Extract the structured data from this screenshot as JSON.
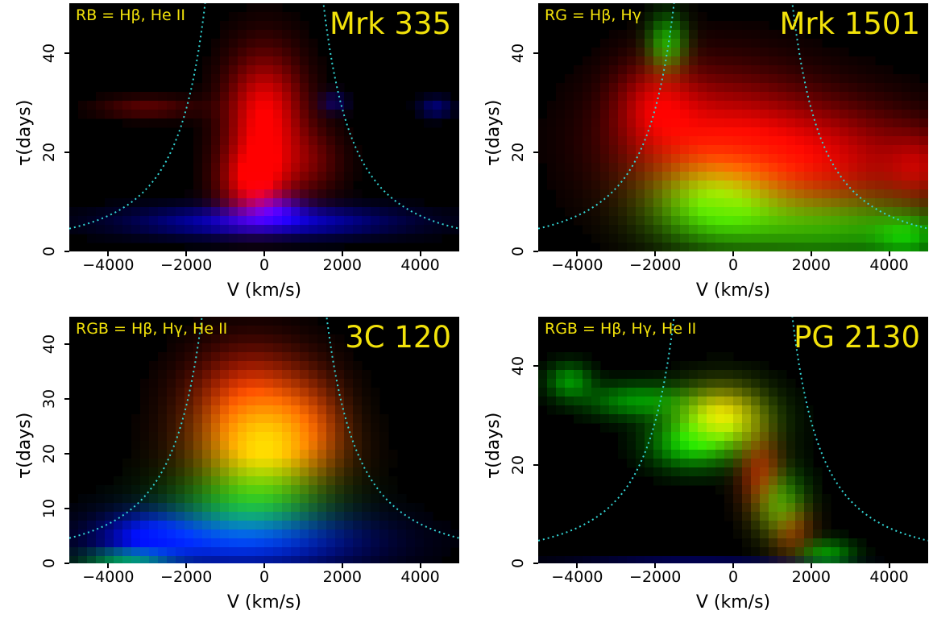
{
  "chart_data": [
    {
      "type": "heatmap",
      "title": "Mrk 335",
      "label": "RB = Hβ, He II",
      "xlabel": "V (km/s)",
      "ylabel": "τ(days)",
      "xlim": [
        -5000,
        5000
      ],
      "ylim": [
        0,
        50
      ],
      "xticks": [
        "−4000",
        "−2000",
        "0",
        "2000",
        "4000"
      ],
      "xtick_values": [
        -4000,
        -2000,
        0,
        2000,
        4000
      ],
      "yticks": [
        "0",
        "20",
        "40"
      ],
      "ytick_values": [
        0,
        20,
        40
      ],
      "channels": {
        "red": "Hβ",
        "blue": "He II"
      },
      "colors": {
        "red": "#ff1010",
        "green": "#20d020",
        "blue": "#1a30ff",
        "envelope": "#33d6d6"
      },
      "envelope": "virial curves, dotted cyan",
      "blobs": [
        {
          "channel": "red",
          "v": 0,
          "tau": 27,
          "sv": 700,
          "st": 9,
          "amp": 1.0
        },
        {
          "channel": "red",
          "v": -300,
          "tau": 14,
          "sv": 600,
          "st": 5,
          "amp": 0.8
        },
        {
          "channel": "red",
          "v": -3000,
          "tau": 29,
          "sv": 900,
          "st": 1.6,
          "amp": 0.35
        },
        {
          "channel": "red",
          "v": 1200,
          "tau": 18,
          "sv": 600,
          "st": 5,
          "amp": 0.35
        },
        {
          "channel": "blue",
          "v": 0,
          "tau": 6,
          "sv": 2300,
          "st": 2.2,
          "amp": 0.85
        },
        {
          "channel": "blue",
          "v": 300,
          "tau": 9,
          "sv": 500,
          "st": 2,
          "amp": 0.5
        },
        {
          "channel": "blue",
          "v": 4400,
          "tau": 29,
          "sv": 300,
          "st": 1.5,
          "amp": 0.45
        },
        {
          "channel": "blue",
          "v": 1800,
          "tau": 30,
          "sv": 250,
          "st": 1.5,
          "amp": 0.35
        }
      ]
    },
    {
      "type": "heatmap",
      "title": "Mrk 1501",
      "label": "RG = Hβ, Hγ",
      "xlabel": "V (km/s)",
      "ylabel": "τ(days)",
      "xlim": [
        -5000,
        5000
      ],
      "ylim": [
        0,
        50
      ],
      "xticks": [
        "−4000",
        "−2000",
        "0",
        "2000",
        "4000"
      ],
      "xtick_values": [
        -4000,
        -2000,
        0,
        2000,
        4000
      ],
      "yticks": [
        "0",
        "20",
        "40"
      ],
      "ytick_values": [
        0,
        20,
        40
      ],
      "channels": {
        "red": "Hβ",
        "green": "Hγ"
      },
      "colors": {
        "red": "#ff1010",
        "green": "#20d020",
        "blue": "#1a30ff",
        "envelope": "#33d6d6"
      },
      "envelope": "virial curves, dotted cyan",
      "blobs": [
        {
          "channel": "red",
          "v": -500,
          "tau": 22,
          "sv": 1800,
          "st": 10,
          "amp": 0.85
        },
        {
          "channel": "red",
          "v": 2500,
          "tau": 18,
          "sv": 1800,
          "st": 8,
          "amp": 0.7
        },
        {
          "channel": "red",
          "v": -2000,
          "tau": 30,
          "sv": 700,
          "st": 6,
          "amp": 0.5
        },
        {
          "channel": "red",
          "v": 4800,
          "tau": 17,
          "sv": 600,
          "st": 5,
          "amp": 0.45
        },
        {
          "channel": "green",
          "v": -500,
          "tau": 10,
          "sv": 1200,
          "st": 6,
          "amp": 0.95
        },
        {
          "channel": "green",
          "v": 2500,
          "tau": 5,
          "sv": 1800,
          "st": 5,
          "amp": 0.7
        },
        {
          "channel": "green",
          "v": -1700,
          "tau": 42,
          "sv": 350,
          "st": 4,
          "amp": 0.7
        },
        {
          "channel": "green",
          "v": 4500,
          "tau": 3,
          "sv": 600,
          "st": 3,
          "amp": 0.5
        }
      ]
    },
    {
      "type": "heatmap",
      "title": "3C 120",
      "label": "RGB = Hβ, Hγ, He II",
      "xlabel": "V (km/s)",
      "ylabel": "τ(days)",
      "xlim": [
        -5000,
        5000
      ],
      "ylim": [
        0,
        45
      ],
      "xticks": [
        "−4000",
        "−2000",
        "0",
        "2000",
        "4000"
      ],
      "xtick_values": [
        -4000,
        -2000,
        0,
        2000,
        4000
      ],
      "yticks": [
        "0",
        "10",
        "20",
        "30",
        "40"
      ],
      "ytick_values": [
        0,
        10,
        20,
        30,
        40
      ],
      "channels": {
        "red": "Hβ",
        "green": "Hγ",
        "blue": "He II"
      },
      "colors": {
        "red": "#ff1010",
        "green": "#20d020",
        "blue": "#1a30ff",
        "envelope": "#33d6d6"
      },
      "envelope": "virial curves, dotted cyan",
      "blobs": [
        {
          "channel": "red",
          "v": -300,
          "tau": 29,
          "sv": 1100,
          "st": 7,
          "amp": 1.0
        },
        {
          "channel": "red",
          "v": 0,
          "tau": 20,
          "sv": 1300,
          "st": 5,
          "amp": 0.6
        },
        {
          "channel": "red",
          "v": 1300,
          "tau": 25,
          "sv": 600,
          "st": 6,
          "amp": 0.4
        },
        {
          "channel": "green",
          "v": 0,
          "tau": 22,
          "sv": 1100,
          "st": 7,
          "amp": 0.9
        },
        {
          "channel": "green",
          "v": -500,
          "tau": 10,
          "sv": 1500,
          "st": 5,
          "amp": 0.6
        },
        {
          "channel": "green",
          "v": -3500,
          "tau": 1,
          "sv": 800,
          "st": 1,
          "amp": 0.7
        },
        {
          "channel": "blue",
          "v": -600,
          "tau": 4,
          "sv": 2200,
          "st": 4,
          "amp": 0.95
        },
        {
          "channel": "blue",
          "v": -3000,
          "tau": 5,
          "sv": 800,
          "st": 3,
          "amp": 0.6
        }
      ]
    },
    {
      "type": "heatmap",
      "title": "PG 2130",
      "label": "RGB = Hβ, Hγ, He II",
      "xlabel": "V (km/s)",
      "ylabel": "τ(days)",
      "xlim": [
        -5000,
        5000
      ],
      "ylim": [
        0,
        50
      ],
      "xticks": [
        "−4000",
        "−2000",
        "0",
        "2000",
        "4000"
      ],
      "xtick_values": [
        -4000,
        -2000,
        0,
        2000,
        4000
      ],
      "yticks": [
        "0",
        "20",
        "40"
      ],
      "ytick_values": [
        0,
        20,
        40
      ],
      "channels": {
        "red": "Hβ",
        "green": "Hγ",
        "blue": "He II"
      },
      "colors": {
        "red": "#ff1010",
        "green": "#20d020",
        "blue": "#1a30ff",
        "envelope": "#33d6d6"
      },
      "envelope": "virial curves, dotted cyan",
      "blobs": [
        {
          "channel": "red",
          "v": -300,
          "tau": 30,
          "sv": 700,
          "st": 4,
          "amp": 0.9
        },
        {
          "channel": "red",
          "v": 700,
          "tau": 18,
          "sv": 400,
          "st": 6,
          "amp": 0.6
        },
        {
          "channel": "red",
          "v": 1500,
          "tau": 7,
          "sv": 400,
          "st": 4,
          "amp": 0.5
        },
        {
          "channel": "green",
          "v": -300,
          "tau": 29,
          "sv": 900,
          "st": 5,
          "amp": 0.95
        },
        {
          "channel": "green",
          "v": -4200,
          "tau": 37,
          "sv": 400,
          "st": 2.5,
          "amp": 0.6
        },
        {
          "channel": "green",
          "v": -2500,
          "tau": 33,
          "sv": 900,
          "st": 2.5,
          "amp": 0.6
        },
        {
          "channel": "green",
          "v": -1200,
          "tau": 24,
          "sv": 700,
          "st": 3.5,
          "amp": 0.6
        },
        {
          "channel": "green",
          "v": 1200,
          "tau": 12,
          "sv": 500,
          "st": 5,
          "amp": 0.65
        },
        {
          "channel": "green",
          "v": 2400,
          "tau": 2,
          "sv": 500,
          "st": 2,
          "amp": 0.6
        },
        {
          "channel": "blue",
          "v": -1000,
          "tau": 0.5,
          "sv": 2200,
          "st": 0.5,
          "amp": 0.3
        }
      ]
    }
  ]
}
